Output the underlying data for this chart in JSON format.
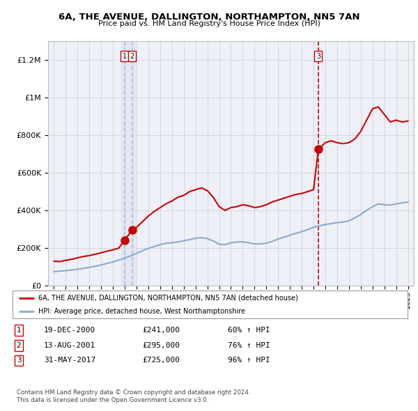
{
  "title": "6A, THE AVENUE, DALLINGTON, NORTHAMPTON, NN5 7AN",
  "subtitle": "Price paid vs. HM Land Registry's House Price Index (HPI)",
  "legend_property": "6A, THE AVENUE, DALLINGTON, NORTHAMPTON, NN5 7AN (detached house)",
  "legend_hpi": "HPI: Average price, detached house, West Northamptonshire",
  "footer1": "Contains HM Land Registry data © Crown copyright and database right 2024.",
  "footer2": "This data is licensed under the Open Government Licence v3.0.",
  "transactions": [
    {
      "num": 1,
      "date": "19-DEC-2000",
      "price": 241000,
      "pct": "60%",
      "x_year": 2000.97
    },
    {
      "num": 2,
      "date": "13-AUG-2001",
      "price": 295000,
      "pct": "76%",
      "x_year": 2001.62
    },
    {
      "num": 3,
      "date": "31-MAY-2017",
      "price": 725000,
      "pct": "96%",
      "x_year": 2017.41
    }
  ],
  "ylim": [
    0,
    1300000
  ],
  "xlim": [
    1994.5,
    2025.5
  ],
  "bg_color": "#eef0f8",
  "red_color": "#cc0000",
  "blue_color": "#88aacc",
  "grid_color": "#cccccc",
  "vline_color_12": "#aabbdd",
  "vline_color_3": "#cc0000",
  "shade_color": "#dde4f0"
}
